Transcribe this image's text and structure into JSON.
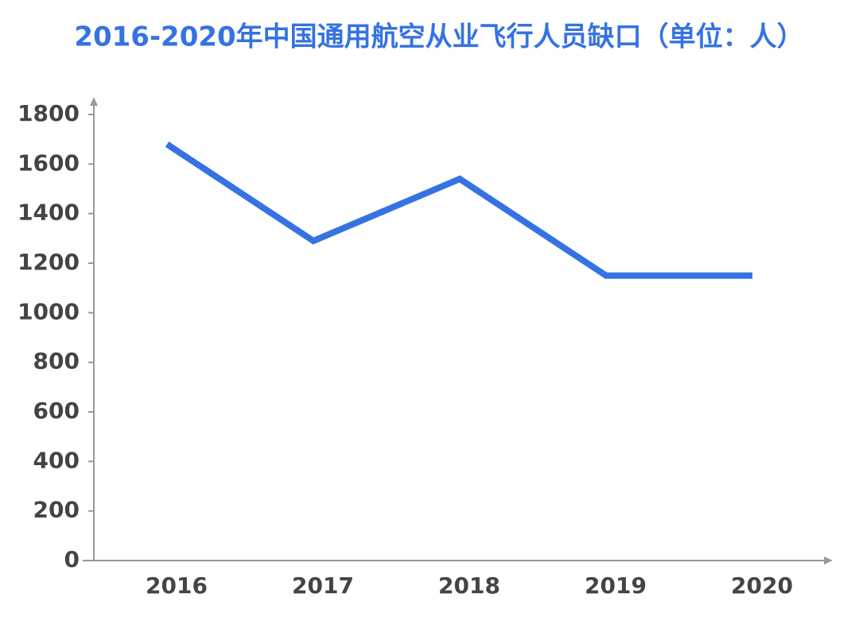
{
  "chart_data": {
    "type": "line",
    "title": "2016-2020年中国通用航空从业飞行人员缺口（单位：人）",
    "categories": [
      "2016",
      "2017",
      "2018",
      "2019",
      "2020"
    ],
    "values": [
      1680,
      1290,
      1540,
      1150,
      1150
    ],
    "color": "#3573e3",
    "ylim": [
      0,
      1800
    ],
    "yticks": [
      0,
      200,
      400,
      600,
      800,
      1000,
      1200,
      1400,
      1600,
      1800
    ],
    "grid": false
  }
}
